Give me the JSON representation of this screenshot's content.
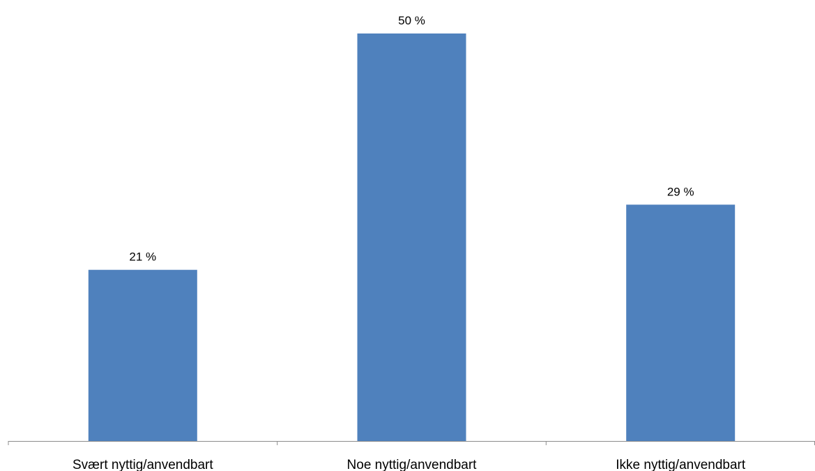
{
  "chart_data": {
    "type": "bar",
    "categories": [
      "Svært nyttig/anvendbart",
      "Noe nyttig/anvendbart",
      "Ikke nyttig/anvendbart"
    ],
    "values": [
      21,
      50,
      29
    ],
    "data_labels": [
      "21 %",
      "50 %",
      "29 %"
    ],
    "title": "",
    "xlabel": "",
    "ylabel": "",
    "ylim": [
      0,
      53
    ],
    "grid": false,
    "legend": "none",
    "bar_color": "#4f81bd"
  }
}
